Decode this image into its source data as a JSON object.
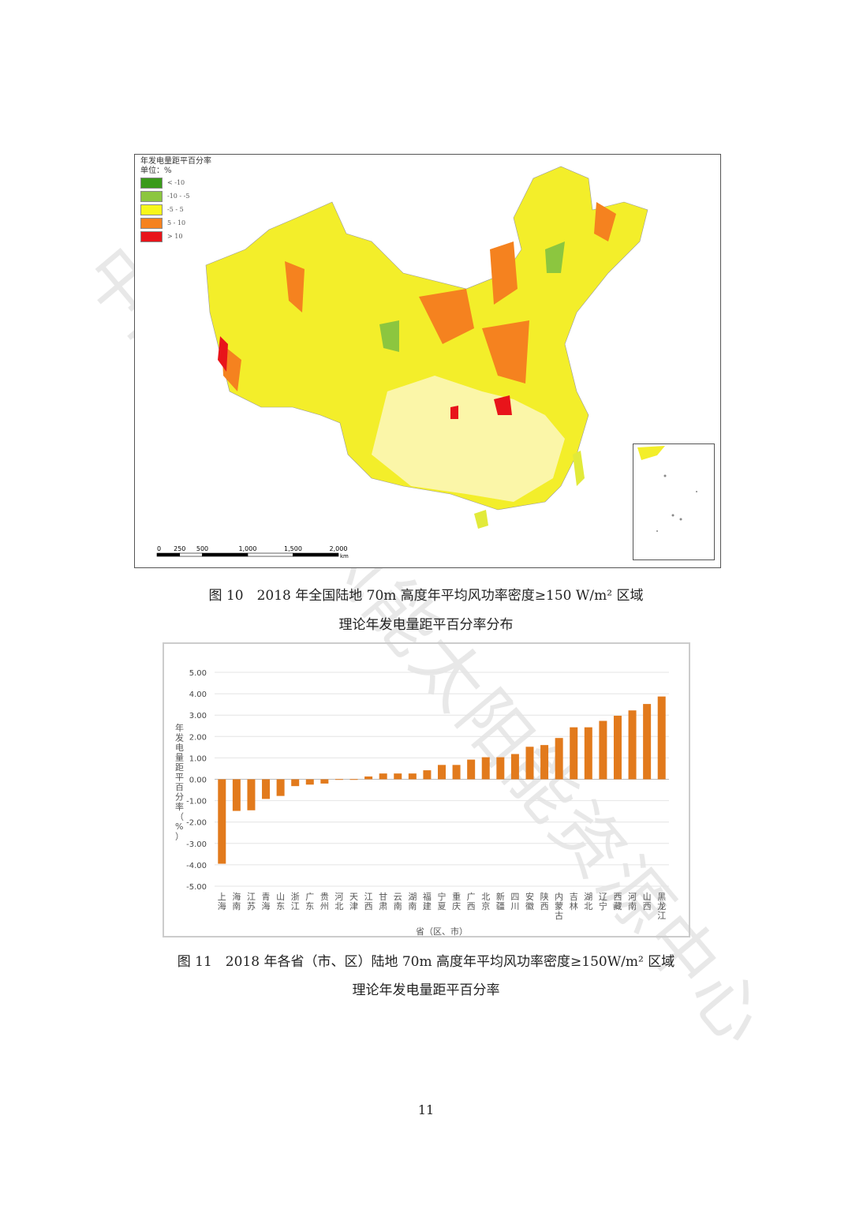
{
  "map": {
    "legend_title": "年发电量距平百分率",
    "legend_unit": "单位：%",
    "legend_items": [
      {
        "label": "< -10",
        "color": "#3a9a1a"
      },
      {
        "label": "-10 - -5",
        "color": "#8cc63f"
      },
      {
        "label": "-5 - 5",
        "color": "#f7f71a"
      },
      {
        "label": "5 - 10",
        "color": "#f5821f"
      },
      {
        "label": "> 10",
        "color": "#e8141a"
      }
    ],
    "scale_labels": [
      "0",
      "250",
      "500",
      "1,000",
      "1,500",
      "2,000"
    ],
    "scale_unit": "km"
  },
  "figure10_caption_line1": "图 10　2018 年全国陆地 70m 高度年平均风功率密度≥150 W/m² 区域",
  "figure10_caption_line2": "理论年发电量距平百分率分布",
  "chart_data": {
    "type": "bar",
    "title": "",
    "xlabel": "省（区、市）",
    "ylabel": "年发电量距平百分率（%）",
    "ylim": [
      -5,
      5
    ],
    "yticks": [
      "5.00",
      "4.00",
      "3.00",
      "2.00",
      "1.00",
      "0.00",
      "-1.00",
      "-2.00",
      "-3.00",
      "-4.00",
      "-5.00"
    ],
    "grid": true,
    "bar_color": "#e27a1c",
    "categories": [
      "上海",
      "海南",
      "江苏",
      "青海",
      "山东",
      "浙江",
      "广东",
      "贵州",
      "河北",
      "天津",
      "江西",
      "甘肃",
      "云南",
      "湖南",
      "福建",
      "宁夏",
      "重庆",
      "广西",
      "北京",
      "新疆",
      "四川",
      "安徽",
      "陕西",
      "内蒙古",
      "吉林",
      "湖北",
      "辽宁",
      "西藏",
      "河南",
      "山西",
      "黑龙江"
    ],
    "values": [
      -3.95,
      -1.48,
      -1.45,
      -0.92,
      -0.78,
      -0.32,
      -0.25,
      -0.2,
      0.01,
      0.01,
      0.13,
      0.27,
      0.27,
      0.27,
      0.42,
      0.67,
      0.67,
      0.92,
      1.03,
      1.03,
      1.18,
      1.52,
      1.6,
      1.93,
      2.43,
      2.43,
      2.73,
      2.97,
      3.22,
      3.52,
      3.87
    ]
  },
  "figure11_caption_line1": "图 11　2018 年各省（市、区）陆地 70m 高度年平均风功率密度≥150W/m² 区域",
  "figure11_caption_line2": "理论年发电量距平百分率",
  "page_number": "11",
  "watermark": "中国气象局风能太阳能资源中心"
}
